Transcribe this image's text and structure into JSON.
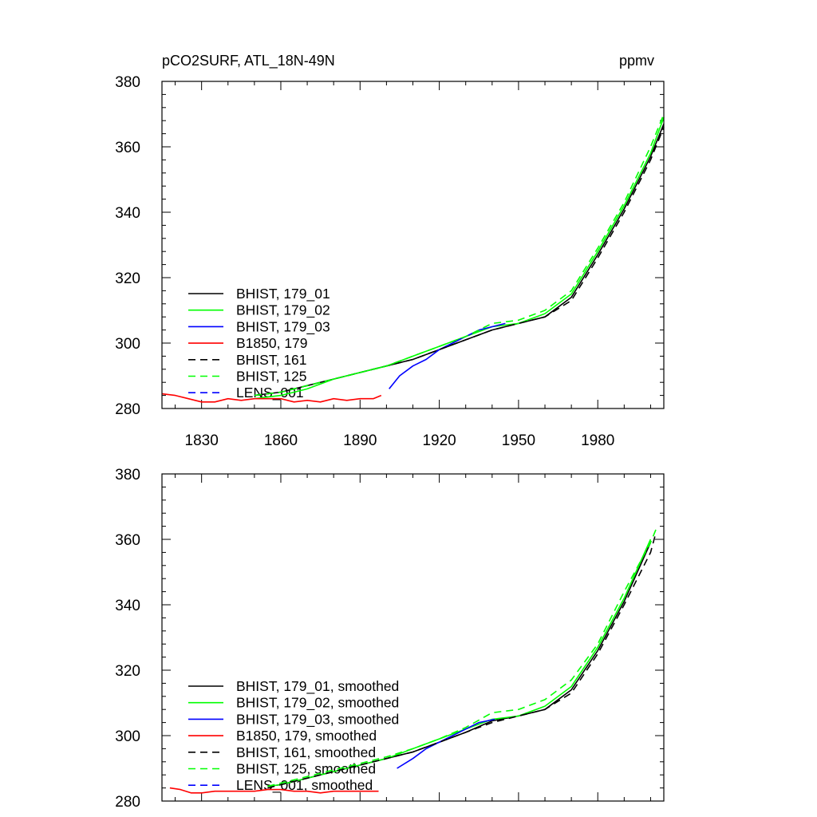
{
  "figure": {
    "title_left": "pCO2SURF, ATL_18N-49N",
    "title_right": "ppmv"
  },
  "chart_data": [
    {
      "type": "line",
      "title": "pCO2SURF, ATL_18N-49N",
      "units": "ppmv",
      "xlim": [
        1815,
        2005
      ],
      "ylim": [
        280,
        380
      ],
      "x_ticks": [
        1830,
        1860,
        1890,
        1920,
        1950,
        1980
      ],
      "y_ticks": [
        280,
        300,
        320,
        340,
        360,
        380
      ],
      "legend_position": "bottom-left",
      "series": [
        {
          "name": "BHIST, 179_01",
          "color": "#000000",
          "dash": "solid",
          "x": [
            1850,
            1860,
            1870,
            1880,
            1890,
            1900,
            1910,
            1920,
            1930,
            1940,
            1950,
            1960,
            1970,
            1980,
            1990,
            2000,
            2005
          ],
          "y": [
            284,
            285,
            287,
            289,
            291,
            293,
            295,
            298,
            301,
            304,
            306,
            308,
            314,
            327,
            341,
            357,
            367
          ]
        },
        {
          "name": "BHIST, 179_02",
          "color": "#00ff00",
          "dash": "solid",
          "x": [
            1850,
            1860,
            1870,
            1880,
            1890,
            1900,
            1910,
            1920,
            1930,
            1940,
            1950,
            1960,
            1970,
            1980,
            1990,
            2000,
            2005
          ],
          "y": [
            283,
            284,
            286,
            289,
            291,
            293,
            296,
            299,
            302,
            305,
            306,
            309,
            315,
            328,
            342,
            358,
            369
          ]
        },
        {
          "name": "BHIST, 179_03",
          "color": "#0000ff",
          "dash": "solid",
          "x": [
            1901,
            1905,
            1910,
            1915,
            1920,
            1925,
            1930,
            1935,
            1940,
            1945
          ],
          "y": [
            286,
            290,
            293,
            295,
            298,
            300,
            302,
            304,
            305,
            306
          ]
        },
        {
          "name": "B1850, 179",
          "color": "#ff0000",
          "dash": "solid",
          "x": [
            1815,
            1820,
            1825,
            1830,
            1835,
            1840,
            1845,
            1850,
            1855,
            1860,
            1865,
            1870,
            1875,
            1880,
            1885,
            1890,
            1895,
            1898
          ],
          "y": [
            284.5,
            284,
            283,
            282,
            282,
            283,
            282.5,
            283,
            283,
            283,
            282,
            282.5,
            282,
            283,
            282.5,
            283,
            283,
            284
          ]
        },
        {
          "name": "BHIST, 161",
          "color": "#000000",
          "dash": "dashed",
          "x": [
            1850,
            1860,
            1870,
            1880,
            1890,
            1900,
            1910,
            1920,
            1930,
            1940,
            1950,
            1960,
            1970,
            1980,
            1990,
            2000,
            2005
          ],
          "y": [
            284,
            285,
            287,
            289,
            291,
            293,
            295,
            298,
            301,
            304,
            306,
            308,
            313,
            326,
            340,
            356,
            366
          ]
        },
        {
          "name": "BHIST, 125",
          "color": "#00ff00",
          "dash": "dashed",
          "x": [
            1850,
            1860,
            1870,
            1880,
            1890,
            1900,
            1910,
            1920,
            1930,
            1940,
            1950,
            1960,
            1970,
            1980,
            1990,
            2000,
            2005
          ],
          "y": [
            284,
            285,
            287,
            289,
            291,
            293,
            296,
            299,
            302,
            306,
            307,
            310,
            316,
            329,
            343,
            360,
            370
          ]
        },
        {
          "name": "LENS_001",
          "color": "#0000ff",
          "dash": "dashed",
          "x": [],
          "y": []
        }
      ]
    },
    {
      "type": "line",
      "xlim": [
        1815,
        2005
      ],
      "ylim": [
        280,
        380
      ],
      "x_ticks": [],
      "y_ticks": [
        280,
        300,
        320,
        340,
        360,
        380
      ],
      "legend_position": "bottom-left",
      "series": [
        {
          "name": "BHIST, 179_01, smoothed",
          "color": "#000000",
          "dash": "solid",
          "x": [
            1855,
            1860,
            1870,
            1880,
            1890,
            1900,
            1910,
            1920,
            1930,
            1940,
            1950,
            1960,
            1970,
            1980,
            1990,
            2000
          ],
          "y": [
            284.5,
            285,
            287,
            289,
            291,
            293,
            295,
            298,
            301,
            304.5,
            306,
            308,
            314,
            326,
            341,
            359
          ]
        },
        {
          "name": "BHIST, 179_02, smoothed",
          "color": "#00ff00",
          "dash": "solid",
          "x": [
            1855,
            1860,
            1870,
            1880,
            1890,
            1900,
            1910,
            1920,
            1930,
            1940,
            1950,
            1960,
            1970,
            1980,
            1990,
            2000
          ],
          "y": [
            284.5,
            285,
            287,
            289,
            291,
            293,
            296,
            299,
            302,
            305,
            306,
            309,
            315,
            327,
            342,
            360
          ]
        },
        {
          "name": "BHIST, 179_03, smoothed",
          "color": "#0000ff",
          "dash": "solid",
          "x": [
            1904,
            1910,
            1915,
            1920,
            1925,
            1930,
            1935,
            1941
          ],
          "y": [
            290,
            293,
            296,
            298,
            300,
            302,
            304,
            305
          ]
        },
        {
          "name": "B1850, 179, smoothed",
          "color": "#ff0000",
          "dash": "solid",
          "x": [
            1818,
            1822,
            1826,
            1830,
            1835,
            1840,
            1845,
            1850,
            1855,
            1860,
            1865,
            1870,
            1875,
            1880,
            1885,
            1890,
            1895,
            1897
          ],
          "y": [
            284,
            283.5,
            282.5,
            282.5,
            283,
            283,
            283,
            283,
            283.5,
            283.5,
            283,
            283,
            282.5,
            283,
            283,
            283,
            283,
            283
          ]
        },
        {
          "name": "BHIST, 161, smoothed",
          "color": "#000000",
          "dash": "dashed",
          "x": [
            1855,
            1860,
            1870,
            1880,
            1890,
            1900,
            1910,
            1920,
            1930,
            1940,
            1950,
            1960,
            1970,
            1980,
            1990,
            2000,
            2002
          ],
          "y": [
            284,
            285,
            287,
            289,
            291,
            293,
            295,
            298,
            301,
            304,
            306,
            308,
            313,
            325,
            340,
            356,
            362
          ]
        },
        {
          "name": "BHIST, 125, smoothed",
          "color": "#00ff00",
          "dash": "dashed",
          "x": [
            1855,
            1860,
            1870,
            1880,
            1890,
            1900,
            1910,
            1920,
            1930,
            1940,
            1950,
            1960,
            1970,
            1980,
            1990,
            2000,
            2002
          ],
          "y": [
            284.5,
            285.5,
            287.5,
            289.5,
            291.5,
            293.5,
            296,
            299,
            302.5,
            307,
            308,
            311,
            317,
            328,
            344,
            359,
            363
          ]
        },
        {
          "name": "LENS_001, smoothed",
          "color": "#0000ff",
          "dash": "dashed",
          "x": [],
          "y": []
        }
      ]
    }
  ]
}
